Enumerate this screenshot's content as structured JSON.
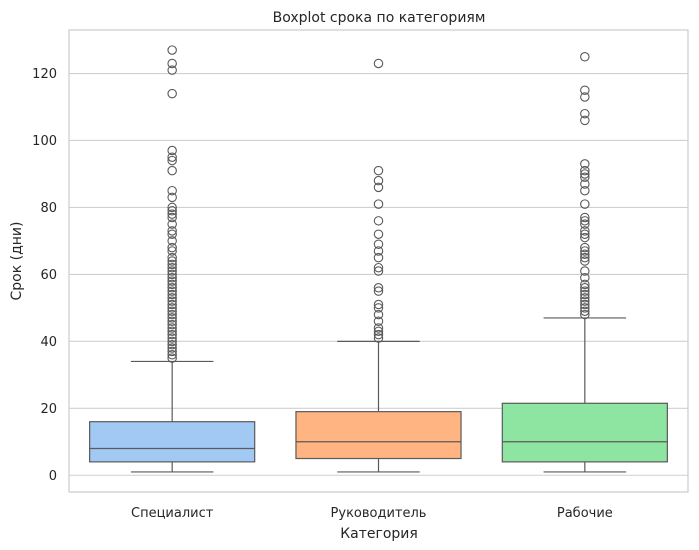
{
  "chart_data": {
    "type": "boxplot",
    "title": "Boxplot срока по категориям",
    "xlabel": "Категория",
    "ylabel": "Срок (дни)",
    "ylim": [
      -5,
      133
    ],
    "yticks": [
      0,
      20,
      40,
      60,
      80,
      100,
      120
    ],
    "grid": true,
    "categories": [
      "Специалист",
      "Руководитель",
      "Рабочие"
    ],
    "colors": {
      "Специалист": "#a1c9f4",
      "Руководитель": "#ffb482",
      "Рабочие": "#8de5a1",
      "lines": "#5a5a5a",
      "grid": "#d0d0d0"
    },
    "boxes": [
      {
        "category": "Специалист",
        "whisker_low": 1,
        "q1": 4,
        "median": 8,
        "q3": 16,
        "whisker_high": 34,
        "outliers": [
          127,
          123,
          121,
          114,
          97,
          95,
          94,
          91,
          85,
          83,
          80,
          79,
          78,
          77,
          75,
          73,
          72,
          70,
          68,
          67,
          65,
          64,
          63,
          62,
          61,
          60,
          59,
          58,
          57,
          56,
          55,
          54,
          53,
          52,
          51,
          50,
          49,
          48,
          47,
          46,
          45,
          44,
          43,
          42,
          41,
          40,
          39,
          38,
          37,
          36,
          35
        ]
      },
      {
        "category": "Руководитель",
        "whisker_low": 1,
        "q1": 5,
        "median": 10,
        "q3": 19,
        "whisker_high": 40,
        "outliers": [
          123,
          91,
          88,
          86,
          81,
          76,
          72,
          69,
          67,
          65,
          62,
          61,
          56,
          55,
          51,
          50,
          48,
          46,
          44,
          43,
          42,
          41
        ]
      },
      {
        "category": "Рабочие",
        "whisker_low": 1,
        "q1": 4,
        "median": 10,
        "q3": 21.5,
        "whisker_high": 47,
        "outliers": [
          125,
          115,
          113,
          108,
          106,
          93,
          91,
          90,
          89,
          87,
          85,
          81,
          77,
          76,
          75,
          73,
          72,
          71,
          68,
          67,
          66,
          65,
          64,
          61,
          59,
          57,
          56,
          55,
          54,
          53,
          52,
          51,
          50,
          49,
          48
        ]
      }
    ]
  }
}
